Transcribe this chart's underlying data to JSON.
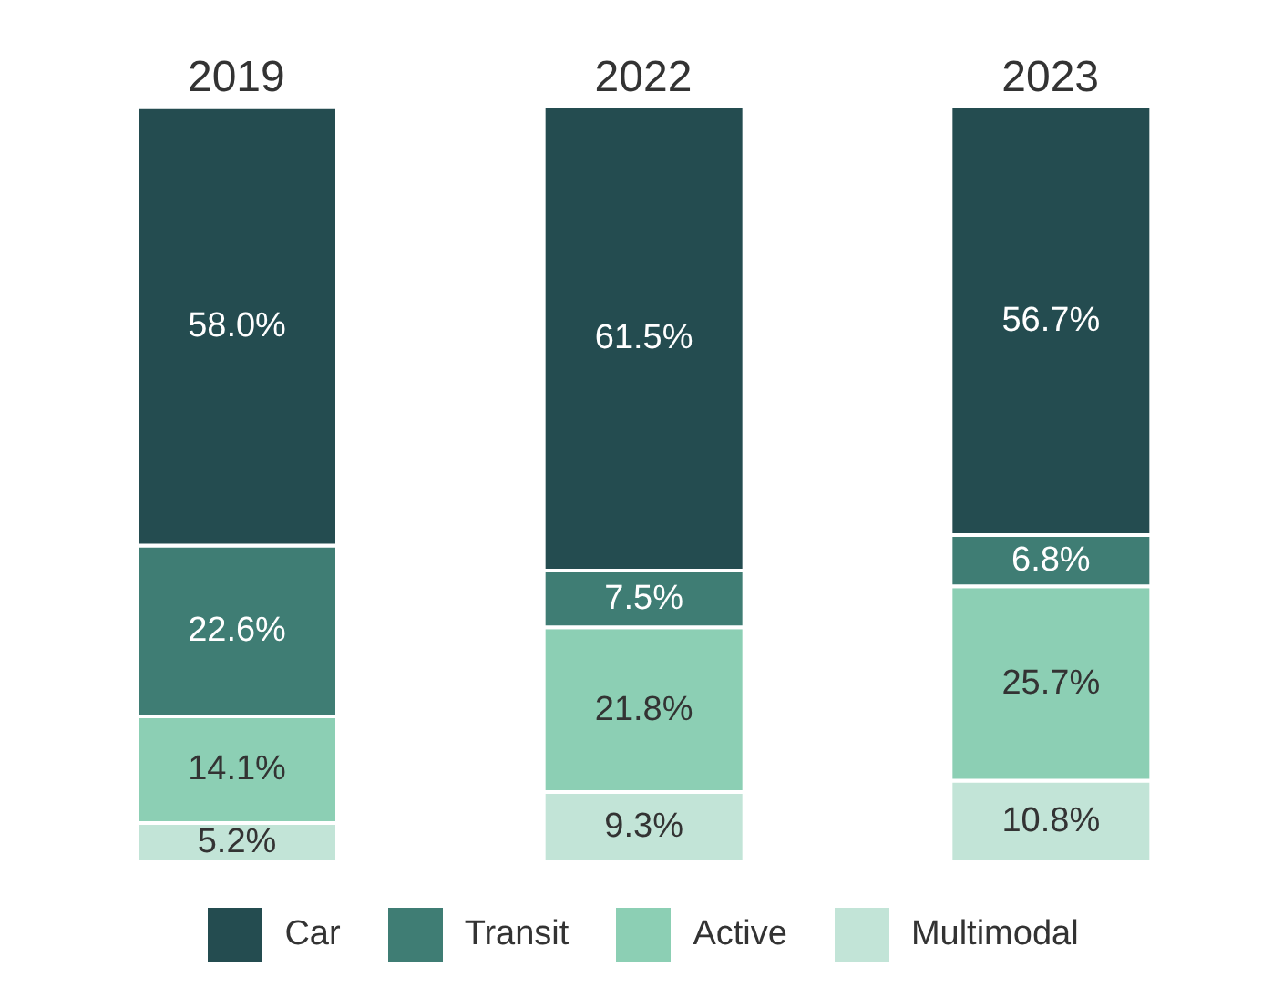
{
  "chart_data": {
    "type": "bar",
    "stacked": true,
    "categories": [
      "2019",
      "2022",
      "2023"
    ],
    "legend": "bottom",
    "series": [
      {
        "name": "Multimodal",
        "color": "#c2e4d7",
        "values": [
          5.2,
          9.3,
          10.8
        ],
        "value_labels": [
          "5.2%",
          "9.3%",
          "10.8%"
        ]
      },
      {
        "name": "Active",
        "color": "#8ccfb4",
        "values": [
          14.1,
          21.8,
          25.7
        ],
        "value_labels": [
          "14.1%",
          "21.8%",
          "25.7%"
        ]
      },
      {
        "name": "Transit",
        "color": "#3f7d74",
        "values": [
          22.6,
          7.5,
          6.8
        ],
        "value_labels": [
          "22.6%",
          "7.5%",
          "6.8%"
        ]
      },
      {
        "name": "Car",
        "color": "#244c50",
        "values": [
          58.0,
          61.5,
          56.7
        ],
        "value_labels": [
          "58.0%",
          "61.5%",
          "56.7%"
        ]
      }
    ]
  }
}
